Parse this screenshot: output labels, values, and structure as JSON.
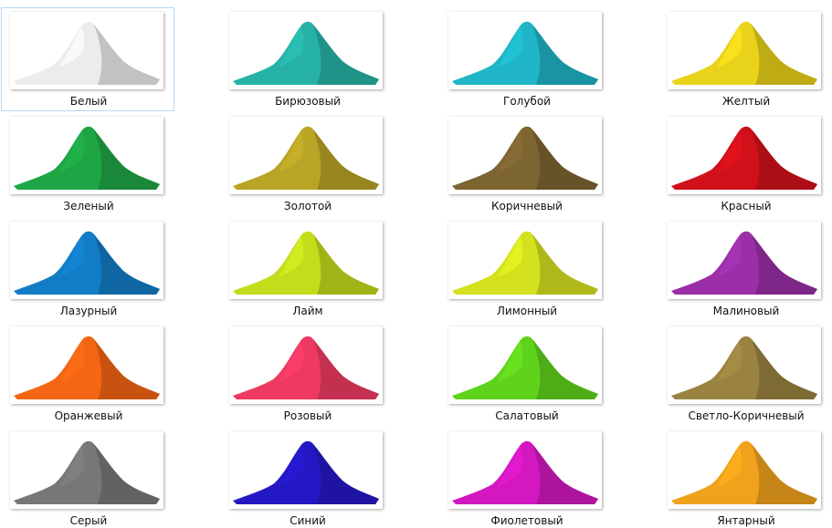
{
  "items": [
    {
      "label": "Белый",
      "color": "#ececec"
    },
    {
      "label": "Бирюзовый",
      "color": "#26b3a6"
    },
    {
      "label": "Голубой",
      "color": "#1fb5c6"
    },
    {
      "label": "Желтый",
      "color": "#e9d21a"
    },
    {
      "label": "Зеленый",
      "color": "#1ea644"
    },
    {
      "label": "Золотой",
      "color": "#b8a425"
    },
    {
      "label": "Коричневый",
      "color": "#7d6531"
    },
    {
      "label": "Красный",
      "color": "#d0111a"
    },
    {
      "label": "Лазурный",
      "color": "#127cc6"
    },
    {
      "label": "Лайм",
      "color": "#c3dc1c"
    },
    {
      "label": "Лимонный",
      "color": "#d4e11e"
    },
    {
      "label": "Малиновый",
      "color": "#9a2fa7"
    },
    {
      "label": "Оранжевый",
      "color": "#f46514"
    },
    {
      "label": "Розовый",
      "color": "#ee3a62"
    },
    {
      "label": "Салатовый",
      "color": "#5fd31c"
    },
    {
      "label": "Светло-Коричневый",
      "color": "#9a8340"
    },
    {
      "label": "Серый",
      "color": "#77777a"
    },
    {
      "label": "Синий",
      "color": "#2418c4"
    },
    {
      "label": "Фиолетовый",
      "color": "#d318c0"
    },
    {
      "label": "Янтарный",
      "color": "#f0a21c"
    }
  ]
}
